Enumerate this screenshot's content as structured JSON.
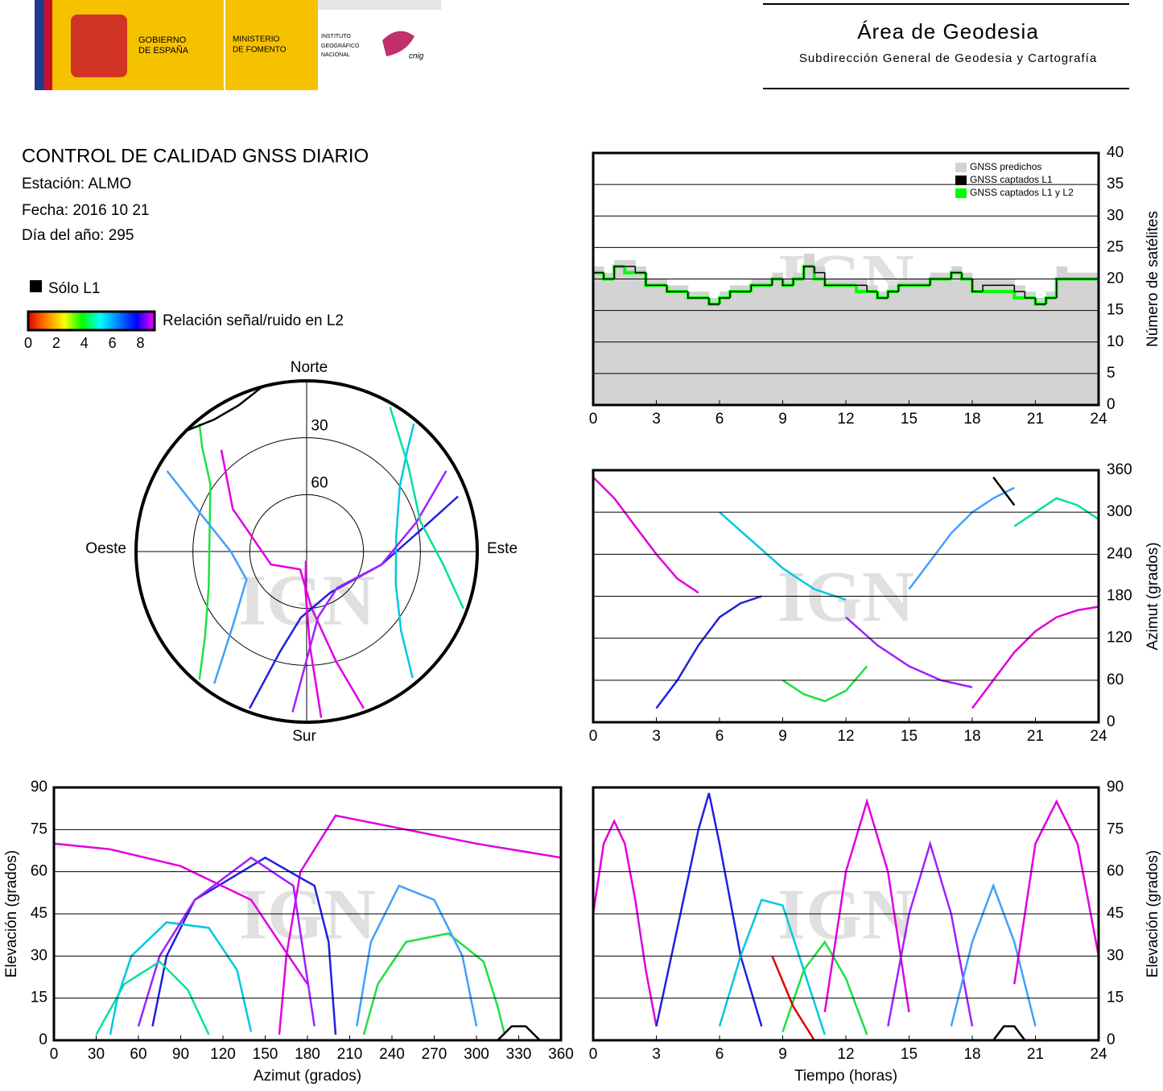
{
  "header": {
    "gobierno": [
      "GOBIERNO",
      "DE ESPAÑA"
    ],
    "ministerio": [
      "MINISTERIO",
      "DE FOMENTO"
    ],
    "instituto": [
      "INSTITUTO",
      "GEOGRÁFICO",
      "NACIONAL"
    ],
    "cnig": "cnig",
    "area": "Área de Geodesia",
    "subdireccion": "Subdirección General de Geodesia y Cartografía"
  },
  "report": {
    "title": "CONTROL DE CALIDAD GNSS DIARIO",
    "station": "Estación: ALMO",
    "date": "Fecha: 2016 10 21",
    "doy": "Día del año: 295"
  },
  "legend": {
    "l1_only": "Sólo L1",
    "snr_label": "Relación señal/ruido en L2",
    "snr_lim": [
      0,
      9
    ],
    "snr_ticks": [
      0,
      2,
      4,
      6,
      8
    ],
    "snr_colors": [
      "#e00000",
      "#ff8000",
      "#ffff00",
      "#00ff00",
      "#00ffff",
      "#0080ff",
      "#0000ff",
      "#ff00ff"
    ]
  },
  "chart_data": [
    {
      "type": "step",
      "watermark": "IGN",
      "ylabel": "Número de satélites",
      "xlim": [
        0,
        24
      ],
      "xticks": [
        0,
        3,
        6,
        9,
        12,
        15,
        18,
        21,
        24
      ],
      "ylim": [
        0,
        40
      ],
      "yticks": [
        0,
        5,
        10,
        15,
        20,
        25,
        30,
        35,
        40
      ],
      "grid": true,
      "legend": "top-right",
      "x": [
        0,
        0.5,
        1,
        1.5,
        2,
        2.5,
        3,
        3.5,
        4,
        4.5,
        5,
        5.5,
        6,
        6.5,
        7,
        7.5,
        8,
        8.5,
        9,
        9.5,
        10,
        10.5,
        11,
        11.5,
        12,
        12.5,
        13,
        13.5,
        14,
        14.5,
        15,
        15.5,
        16,
        16.5,
        17,
        17.5,
        18,
        18.5,
        19,
        19.5,
        20,
        20.5,
        21,
        21.5,
        22,
        22.5,
        23,
        23.5
      ],
      "series": [
        {
          "name": "GNSS predichos",
          "color": "#d3d3d3",
          "values": [
            22,
            21,
            23,
            23,
            22,
            20,
            20,
            19,
            19,
            18,
            18,
            17,
            18,
            19,
            19,
            20,
            20,
            21,
            20,
            21,
            24,
            22,
            20,
            20,
            20,
            20,
            19,
            18,
            19,
            20,
            20,
            20,
            21,
            21,
            22,
            21,
            20,
            20,
            20,
            20,
            19,
            18,
            17,
            18,
            22,
            21,
            21,
            21
          ]
        },
        {
          "name": "GNSS captados L1",
          "color": "#000000",
          "values": [
            21,
            20,
            22,
            22,
            21,
            19,
            19,
            18,
            18,
            17,
            17,
            16,
            17,
            18,
            18,
            19,
            19,
            20,
            19,
            20,
            22,
            21,
            19,
            19,
            19,
            19,
            18,
            17,
            18,
            19,
            19,
            19,
            20,
            20,
            21,
            20,
            18,
            19,
            19,
            19,
            18,
            17,
            16,
            17,
            20,
            20,
            20,
            20
          ]
        },
        {
          "name": "GNSS captados L1 y L2",
          "color": "#00ff00",
          "values": [
            21,
            20,
            22,
            21,
            21,
            19,
            19,
            18,
            18,
            17,
            17,
            16,
            17,
            18,
            18,
            19,
            19,
            20,
            19,
            20,
            22,
            20,
            19,
            19,
            19,
            18,
            18,
            17,
            18,
            19,
            19,
            19,
            20,
            20,
            21,
            20,
            18,
            18,
            18,
            18,
            17,
            17,
            16,
            17,
            20,
            20,
            20,
            20
          ]
        }
      ]
    },
    {
      "type": "tracks",
      "watermark": "IGN",
      "ylabel": "Azimut (grados)",
      "xlim": [
        0,
        24
      ],
      "xticks": [
        0,
        3,
        6,
        9,
        12,
        15,
        18,
        21,
        24
      ],
      "ylim": [
        0,
        360
      ],
      "yticks": [
        0,
        60,
        120,
        180,
        240,
        300,
        360
      ],
      "grid": true,
      "tracks": [
        {
          "color": "#e000e0",
          "x": [
            0,
            1,
            2,
            3,
            4,
            5
          ],
          "y": [
            350,
            320,
            280,
            240,
            205,
            185
          ]
        },
        {
          "color": "#2020e0",
          "x": [
            3,
            4,
            5,
            6,
            7,
            8
          ],
          "y": [
            20,
            60,
            110,
            150,
            170,
            180
          ]
        },
        {
          "color": "#00c8e0",
          "x": [
            6,
            7.5,
            9,
            10.5,
            12
          ],
          "y": [
            300,
            260,
            220,
            190,
            175
          ]
        },
        {
          "color": "#20e040",
          "x": [
            9,
            10,
            11,
            12,
            13
          ],
          "y": [
            60,
            40,
            30,
            45,
            80
          ]
        },
        {
          "color": "#a020ff",
          "x": [
            12,
            13.5,
            15,
            16.5,
            18
          ],
          "y": [
            150,
            110,
            80,
            60,
            50
          ]
        },
        {
          "color": "#40a0ff",
          "x": [
            15,
            16,
            17,
            18,
            19,
            20
          ],
          "y": [
            190,
            230,
            270,
            300,
            320,
            335
          ]
        },
        {
          "color": "#e000e0",
          "x": [
            18,
            19,
            20,
            21,
            22,
            23,
            24
          ],
          "y": [
            20,
            60,
            100,
            130,
            150,
            160,
            165
          ]
        },
        {
          "color": "#00e0a0",
          "x": [
            20,
            21,
            22,
            23,
            24
          ],
          "y": [
            280,
            300,
            320,
            310,
            290
          ]
        },
        {
          "color": "#000000",
          "x": [
            19,
            19.5,
            20
          ],
          "y": [
            350,
            330,
            310
          ]
        }
      ]
    },
    {
      "type": "tracks",
      "watermark": "IGN",
      "ylabel": "Elevación (grados)",
      "xlabel": "Azimut (grados)",
      "xlim": [
        0,
        360
      ],
      "xticks": [
        0,
        30,
        60,
        90,
        120,
        150,
        180,
        210,
        240,
        270,
        300,
        330,
        360
      ],
      "ylim": [
        0,
        90
      ],
      "yticks": [
        0,
        15,
        30,
        45,
        60,
        75,
        90
      ],
      "grid": true,
      "tracks": [
        {
          "color": "#e000e0",
          "x": [
            160,
            165,
            175,
            200,
            250,
            300,
            360
          ],
          "y": [
            2,
            30,
            60,
            80,
            75,
            70,
            65
          ]
        },
        {
          "color": "#2020e0",
          "x": [
            200,
            195,
            185,
            150,
            100,
            80,
            70
          ],
          "y": [
            2,
            35,
            55,
            65,
            50,
            30,
            5
          ]
        },
        {
          "color": "#00c8e0",
          "x": [
            140,
            130,
            110,
            80,
            55,
            45,
            40
          ],
          "y": [
            3,
            25,
            40,
            42,
            30,
            15,
            2
          ]
        },
        {
          "color": "#20e040",
          "x": [
            220,
            230,
            250,
            280,
            305,
            315,
            320
          ],
          "y": [
            2,
            20,
            35,
            38,
            28,
            12,
            2
          ]
        },
        {
          "color": "#40a0ff",
          "x": [
            300,
            290,
            270,
            245,
            225,
            215
          ],
          "y": [
            5,
            30,
            50,
            55,
            35,
            5
          ]
        },
        {
          "color": "#a020ff",
          "x": [
            60,
            75,
            100,
            140,
            170,
            185
          ],
          "y": [
            5,
            30,
            50,
            65,
            55,
            5
          ]
        },
        {
          "color": "#00e0a0",
          "x": [
            30,
            50,
            75,
            95,
            110
          ],
          "y": [
            2,
            20,
            28,
            18,
            2
          ]
        },
        {
          "color": "#e000e0",
          "x": [
            0,
            40,
            90,
            140,
            180
          ],
          "y": [
            70,
            68,
            62,
            50,
            20
          ]
        },
        {
          "color": "#000000",
          "x": [
            315,
            325,
            335,
            345
          ],
          "y": [
            0,
            5,
            5,
            0
          ]
        }
      ]
    },
    {
      "type": "tracks",
      "watermark": "IGN",
      "ylabel": "Elevación (grados)",
      "xlabel": "Tiempo (horas)",
      "xlim": [
        0,
        24
      ],
      "xticks": [
        0,
        3,
        6,
        9,
        12,
        15,
        18,
        21,
        24
      ],
      "ylim": [
        0,
        90
      ],
      "yticks": [
        0,
        15,
        30,
        45,
        60,
        75,
        90
      ],
      "grid": true,
      "tracks": [
        {
          "color": "#e000e0",
          "x": [
            0,
            0.5,
            1,
            1.5,
            2,
            2.5,
            3
          ],
          "y": [
            45,
            70,
            78,
            70,
            50,
            25,
            5
          ]
        },
        {
          "color": "#2020e0",
          "x": [
            3,
            4,
            5,
            5.5,
            6,
            7,
            8
          ],
          "y": [
            5,
            40,
            75,
            88,
            70,
            30,
            5
          ]
        },
        {
          "color": "#00c8e0",
          "x": [
            6,
            7,
            8,
            9,
            10,
            11
          ],
          "y": [
            5,
            30,
            50,
            48,
            25,
            2
          ]
        },
        {
          "color": "#20e040",
          "x": [
            9,
            10,
            11,
            12,
            13
          ],
          "y": [
            3,
            25,
            35,
            22,
            2
          ]
        },
        {
          "color": "#e000e0",
          "x": [
            11,
            12,
            13,
            14,
            15
          ],
          "y": [
            10,
            60,
            85,
            60,
            10
          ]
        },
        {
          "color": "#a020ff",
          "x": [
            14,
            15,
            16,
            17,
            18
          ],
          "y": [
            5,
            45,
            70,
            45,
            5
          ]
        },
        {
          "color": "#40a0ff",
          "x": [
            17,
            18,
            19,
            20,
            21
          ],
          "y": [
            5,
            35,
            55,
            35,
            5
          ]
        },
        {
          "color": "#e000e0",
          "x": [
            20,
            21,
            22,
            23,
            24
          ],
          "y": [
            20,
            70,
            85,
            70,
            30
          ]
        },
        {
          "color": "#e00000",
          "x": [
            8.5,
            9.5,
            10.5
          ],
          "y": [
            30,
            12,
            0
          ]
        },
        {
          "color": "#000000",
          "x": [
            19,
            19.5,
            20,
            20.5
          ],
          "y": [
            0,
            5,
            5,
            0
          ]
        }
      ]
    },
    {
      "type": "polar",
      "watermark": "IGN",
      "directions": {
        "north": "Norte",
        "south": "Sur",
        "east": "Este",
        "west": "Oeste"
      },
      "rlim": [
        90,
        0
      ],
      "rticks": [
        30,
        60
      ],
      "tracks": [
        {
          "color": "#e000e0",
          "x": [
            160,
            165,
            175,
            200,
            250,
            300,
            320
          ],
          "y": [
            2,
            30,
            60,
            80,
            70,
            45,
            20
          ]
        },
        {
          "color": "#2020e0",
          "x": [
            200,
            195,
            185,
            150,
            100,
            80,
            70
          ],
          "y": [
            2,
            35,
            55,
            65,
            50,
            30,
            5
          ]
        },
        {
          "color": "#00c8e0",
          "x": [
            140,
            130,
            110,
            80,
            55,
            45,
            40
          ],
          "y": [
            3,
            25,
            40,
            42,
            30,
            15,
            2
          ]
        },
        {
          "color": "#20e040",
          "x": [
            220,
            230,
            250,
            280,
            305,
            315,
            320
          ],
          "y": [
            2,
            20,
            35,
            38,
            28,
            12,
            2
          ]
        },
        {
          "color": "#40a0ff",
          "x": [
            300,
            290,
            270,
            245,
            225,
            215
          ],
          "y": [
            5,
            30,
            50,
            55,
            35,
            5
          ]
        },
        {
          "color": "#a020ff",
          "x": [
            60,
            75,
            100,
            140,
            170,
            185
          ],
          "y": [
            5,
            30,
            50,
            65,
            55,
            5
          ]
        },
        {
          "color": "#00e0a0",
          "x": [
            30,
            50,
            75,
            95,
            110
          ],
          "y": [
            2,
            20,
            28,
            18,
            2
          ]
        },
        {
          "color": "#e000e0",
          "x": [
            175,
            178,
            182,
            185
          ],
          "y": [
            2,
            40,
            70,
            85
          ]
        },
        {
          "color": "#000000",
          "x": [
            315,
            325,
            335,
            345
          ],
          "y": [
            0,
            5,
            5,
            0
          ]
        }
      ]
    }
  ]
}
